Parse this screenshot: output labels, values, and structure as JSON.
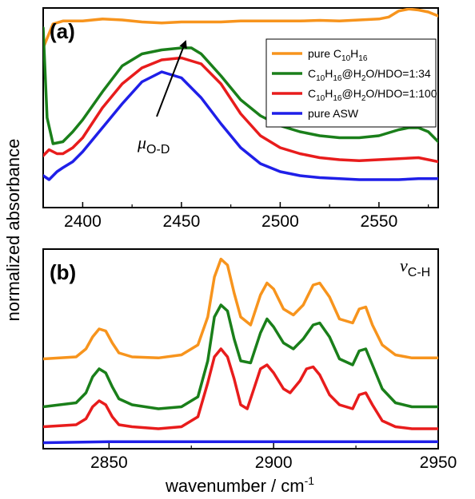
{
  "figure": {
    "ylabel": "normalized absorbance",
    "xlabel": "wavenumber / cm",
    "xlabel_sup": "-1"
  },
  "legend_entries": [
    {
      "name": "pure C10H16",
      "color": "#f7941d"
    },
    {
      "name": "C10H16@H2O/HDO=1:34",
      "color": "#1a7f1a"
    },
    {
      "name": "C10H16@H2O/HDO=1:100",
      "color": "#e81c1c"
    },
    {
      "name": "pure ASW",
      "color": "#1f1fe8"
    }
  ],
  "chart_data": [
    {
      "type": "line",
      "panel_label": "(a)",
      "xlim": [
        2380,
        2580
      ],
      "xticks": [
        2400,
        2450,
        2500,
        2550
      ],
      "legend_position": "top-right",
      "annotation": {
        "text": "μ",
        "subscript": "O-D",
        "x": 2445
      },
      "series": [
        {
          "name": "pure C10H16",
          "color": "#f7941d",
          "x": [
            2380,
            2385,
            2390,
            2400,
            2410,
            2420,
            2430,
            2440,
            2450,
            2460,
            2470,
            2480,
            2490,
            2500,
            2510,
            2520,
            2530,
            2540,
            2550,
            2555,
            2560,
            2565,
            2570,
            2575,
            2580
          ],
          "y": [
            0.8,
            0.92,
            0.935,
            0.935,
            0.945,
            0.94,
            0.93,
            0.925,
            0.93,
            0.93,
            0.93,
            0.935,
            0.935,
            0.935,
            0.935,
            0.938,
            0.935,
            0.94,
            0.945,
            0.955,
            0.985,
            0.995,
            0.99,
            0.98,
            0.96
          ]
        },
        {
          "name": "C10H16@H2O/HDO=1:34",
          "color": "#1a7f1a",
          "x": [
            2380,
            2382,
            2385,
            2390,
            2395,
            2400,
            2410,
            2420,
            2430,
            2440,
            2450,
            2455,
            2460,
            2470,
            2480,
            2490,
            2500,
            2510,
            2520,
            2530,
            2540,
            2550,
            2560,
            2565,
            2570,
            2575,
            2580
          ],
          "y": [
            0.9,
            0.45,
            0.32,
            0.33,
            0.38,
            0.44,
            0.58,
            0.71,
            0.77,
            0.79,
            0.8,
            0.8,
            0.77,
            0.66,
            0.54,
            0.46,
            0.41,
            0.38,
            0.36,
            0.35,
            0.35,
            0.36,
            0.39,
            0.4,
            0.4,
            0.38,
            0.33
          ]
        },
        {
          "name": "C10H16@H2O/HDO=1:100",
          "color": "#e81c1c",
          "x": [
            2380,
            2383,
            2387,
            2390,
            2395,
            2400,
            2410,
            2420,
            2430,
            2440,
            2450,
            2460,
            2470,
            2480,
            2490,
            2500,
            2510,
            2520,
            2530,
            2540,
            2550,
            2560,
            2570,
            2580
          ],
          "y": [
            0.26,
            0.29,
            0.27,
            0.27,
            0.3,
            0.35,
            0.5,
            0.62,
            0.7,
            0.74,
            0.75,
            0.72,
            0.62,
            0.47,
            0.36,
            0.3,
            0.27,
            0.25,
            0.24,
            0.235,
            0.24,
            0.245,
            0.25,
            0.23
          ]
        },
        {
          "name": "pure ASW",
          "color": "#1f1fe8",
          "x": [
            2380,
            2383,
            2387,
            2390,
            2395,
            2400,
            2410,
            2420,
            2430,
            2440,
            2450,
            2460,
            2470,
            2480,
            2490,
            2500,
            2510,
            2520,
            2530,
            2540,
            2550,
            2560,
            2570,
            2580
          ],
          "y": [
            0.16,
            0.14,
            0.18,
            0.2,
            0.23,
            0.28,
            0.4,
            0.52,
            0.63,
            0.68,
            0.65,
            0.55,
            0.42,
            0.3,
            0.22,
            0.18,
            0.16,
            0.15,
            0.145,
            0.14,
            0.14,
            0.14,
            0.145,
            0.145
          ]
        }
      ]
    },
    {
      "type": "line",
      "panel_label": "(b)",
      "xlim": [
        2830,
        2950
      ],
      "xticks": [
        2850,
        2900,
        2950
      ],
      "annotation": {
        "text": "ν",
        "subscript": "C-H"
      },
      "series": [
        {
          "name": "pure C10H16",
          "color": "#f7941d",
          "x": [
            2830,
            2840,
            2843,
            2845,
            2847,
            2849,
            2851,
            2853,
            2857,
            2865,
            2872,
            2877,
            2880,
            2882,
            2884,
            2886,
            2888,
            2890,
            2893,
            2896,
            2898,
            2900,
            2903,
            2906,
            2909,
            2912,
            2914,
            2917,
            2920,
            2924,
            2926,
            2928,
            2930,
            2933,
            2937,
            2942,
            2950
          ],
          "y": [
            0.45,
            0.46,
            0.5,
            0.56,
            0.6,
            0.59,
            0.53,
            0.48,
            0.46,
            0.455,
            0.47,
            0.52,
            0.66,
            0.86,
            0.95,
            0.92,
            0.78,
            0.66,
            0.62,
            0.77,
            0.83,
            0.8,
            0.7,
            0.67,
            0.72,
            0.82,
            0.83,
            0.76,
            0.65,
            0.63,
            0.7,
            0.71,
            0.62,
            0.52,
            0.47,
            0.455,
            0.455
          ]
        },
        {
          "name": "C10H16@H2O/HDO=1:34",
          "color": "#1a7f1a",
          "x": [
            2830,
            2840,
            2843,
            2845,
            2847,
            2849,
            2851,
            2853,
            2857,
            2865,
            2872,
            2877,
            2880,
            2882,
            2884,
            2886,
            2888,
            2890,
            2893,
            2896,
            2898,
            2900,
            2903,
            2906,
            2909,
            2912,
            2914,
            2917,
            2920,
            2924,
            2926,
            2928,
            2930,
            2933,
            2937,
            2942,
            2950
          ],
          "y": [
            0.21,
            0.23,
            0.28,
            0.36,
            0.4,
            0.38,
            0.31,
            0.25,
            0.22,
            0.2,
            0.21,
            0.26,
            0.44,
            0.66,
            0.72,
            0.69,
            0.55,
            0.44,
            0.43,
            0.58,
            0.65,
            0.61,
            0.53,
            0.5,
            0.55,
            0.62,
            0.63,
            0.56,
            0.45,
            0.42,
            0.49,
            0.5,
            0.42,
            0.3,
            0.23,
            0.21,
            0.21
          ]
        },
        {
          "name": "C10H16@H2O/HDO=1:100",
          "color": "#e81c1c",
          "x": [
            2830,
            2840,
            2843,
            2845,
            2847,
            2849,
            2851,
            2853,
            2857,
            2865,
            2872,
            2877,
            2880,
            2882,
            2884,
            2886,
            2888,
            2890,
            2892,
            2894,
            2896,
            2898,
            2900,
            2903,
            2905,
            2908,
            2910,
            2912,
            2914,
            2917,
            2920,
            2924,
            2926,
            2928,
            2930,
            2933,
            2937,
            2942,
            2950
          ],
          "y": [
            0.11,
            0.12,
            0.15,
            0.21,
            0.24,
            0.22,
            0.16,
            0.12,
            0.11,
            0.1,
            0.11,
            0.16,
            0.33,
            0.46,
            0.5,
            0.46,
            0.35,
            0.22,
            0.2,
            0.3,
            0.4,
            0.42,
            0.38,
            0.3,
            0.28,
            0.34,
            0.4,
            0.41,
            0.37,
            0.27,
            0.22,
            0.2,
            0.27,
            0.28,
            0.22,
            0.14,
            0.11,
            0.1,
            0.1
          ]
        },
        {
          "name": "pure ASW",
          "color": "#1f1fe8",
          "x": [
            2830,
            2850,
            2870,
            2890,
            2910,
            2930,
            2950
          ],
          "y": [
            0.03,
            0.035,
            0.035,
            0.035,
            0.035,
            0.035,
            0.035
          ]
        }
      ]
    }
  ]
}
